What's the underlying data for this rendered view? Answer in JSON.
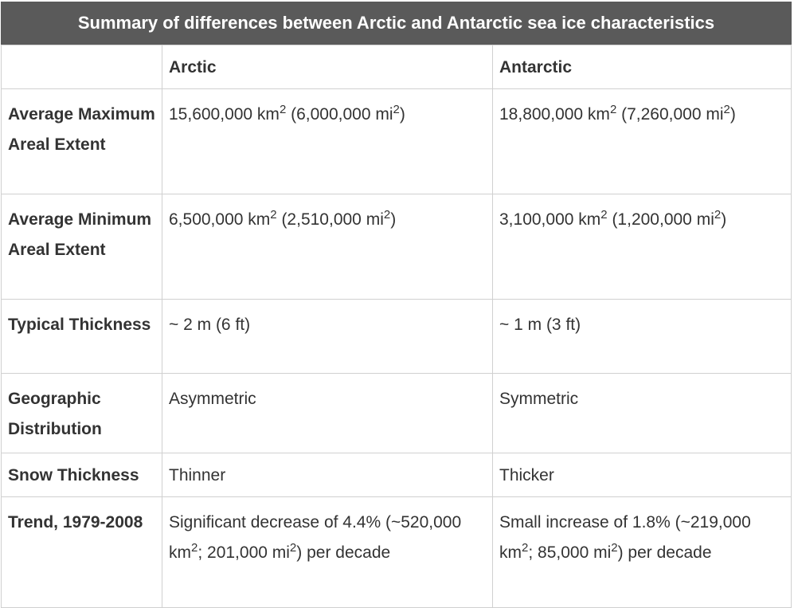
{
  "table": {
    "caption": "Summary of differences between Arctic and Antarctic sea ice characteristics",
    "columns": [
      "",
      "Arctic",
      "Antarctic"
    ],
    "rows": [
      {
        "label": "Average Maximum Areal Extent",
        "arctic": {
          "a": "15,600,000 km",
          "s1": "2",
          "b": " (6,000,000 mi",
          "s2": "2",
          "c": ")"
        },
        "antarctic": {
          "a": "18,800,000 km",
          "s1": "2",
          "b": " (7,260,000 mi",
          "s2": "2",
          "c": ")"
        }
      },
      {
        "label": "Average Minimum Areal Extent",
        "arctic": {
          "a": "6,500,000 km",
          "s1": "2",
          "b": " (2,510,000 mi",
          "s2": "2",
          "c": ")"
        },
        "antarctic": {
          "a": "3,100,000 km",
          "s1": "2",
          "b": " (1,200,000 mi",
          "s2": "2",
          "c": ")"
        }
      },
      {
        "label": "Typical Thickness",
        "arctic": "~ 2 m (6 ft)",
        "antarctic": "~ 1 m (3 ft)"
      },
      {
        "label": "Geographic Distribution",
        "arctic": "Asymmetric",
        "antarctic": "Symmetric"
      },
      {
        "label": "Snow Thickness",
        "arctic": "Thinner",
        "antarctic": "Thicker"
      },
      {
        "label": "Trend, 1979-2008",
        "arctic": {
          "a": "Significant decrease of 4.4% (~520,000 km",
          "s1": "2",
          "b": "; 201,000 mi",
          "s2": "2",
          "c": ") per decade"
        },
        "antarctic": {
          "a": "Small increase of 1.8% (~219,000 km",
          "s1": "2",
          "b": "; 85,000 mi",
          "s2": "2",
          "c": ") per decade"
        }
      }
    ]
  },
  "colors": {
    "caption_bg": "#5a5a5a",
    "caption_text": "#ffffff",
    "border": "#d0d0d0",
    "text": "#333333"
  }
}
